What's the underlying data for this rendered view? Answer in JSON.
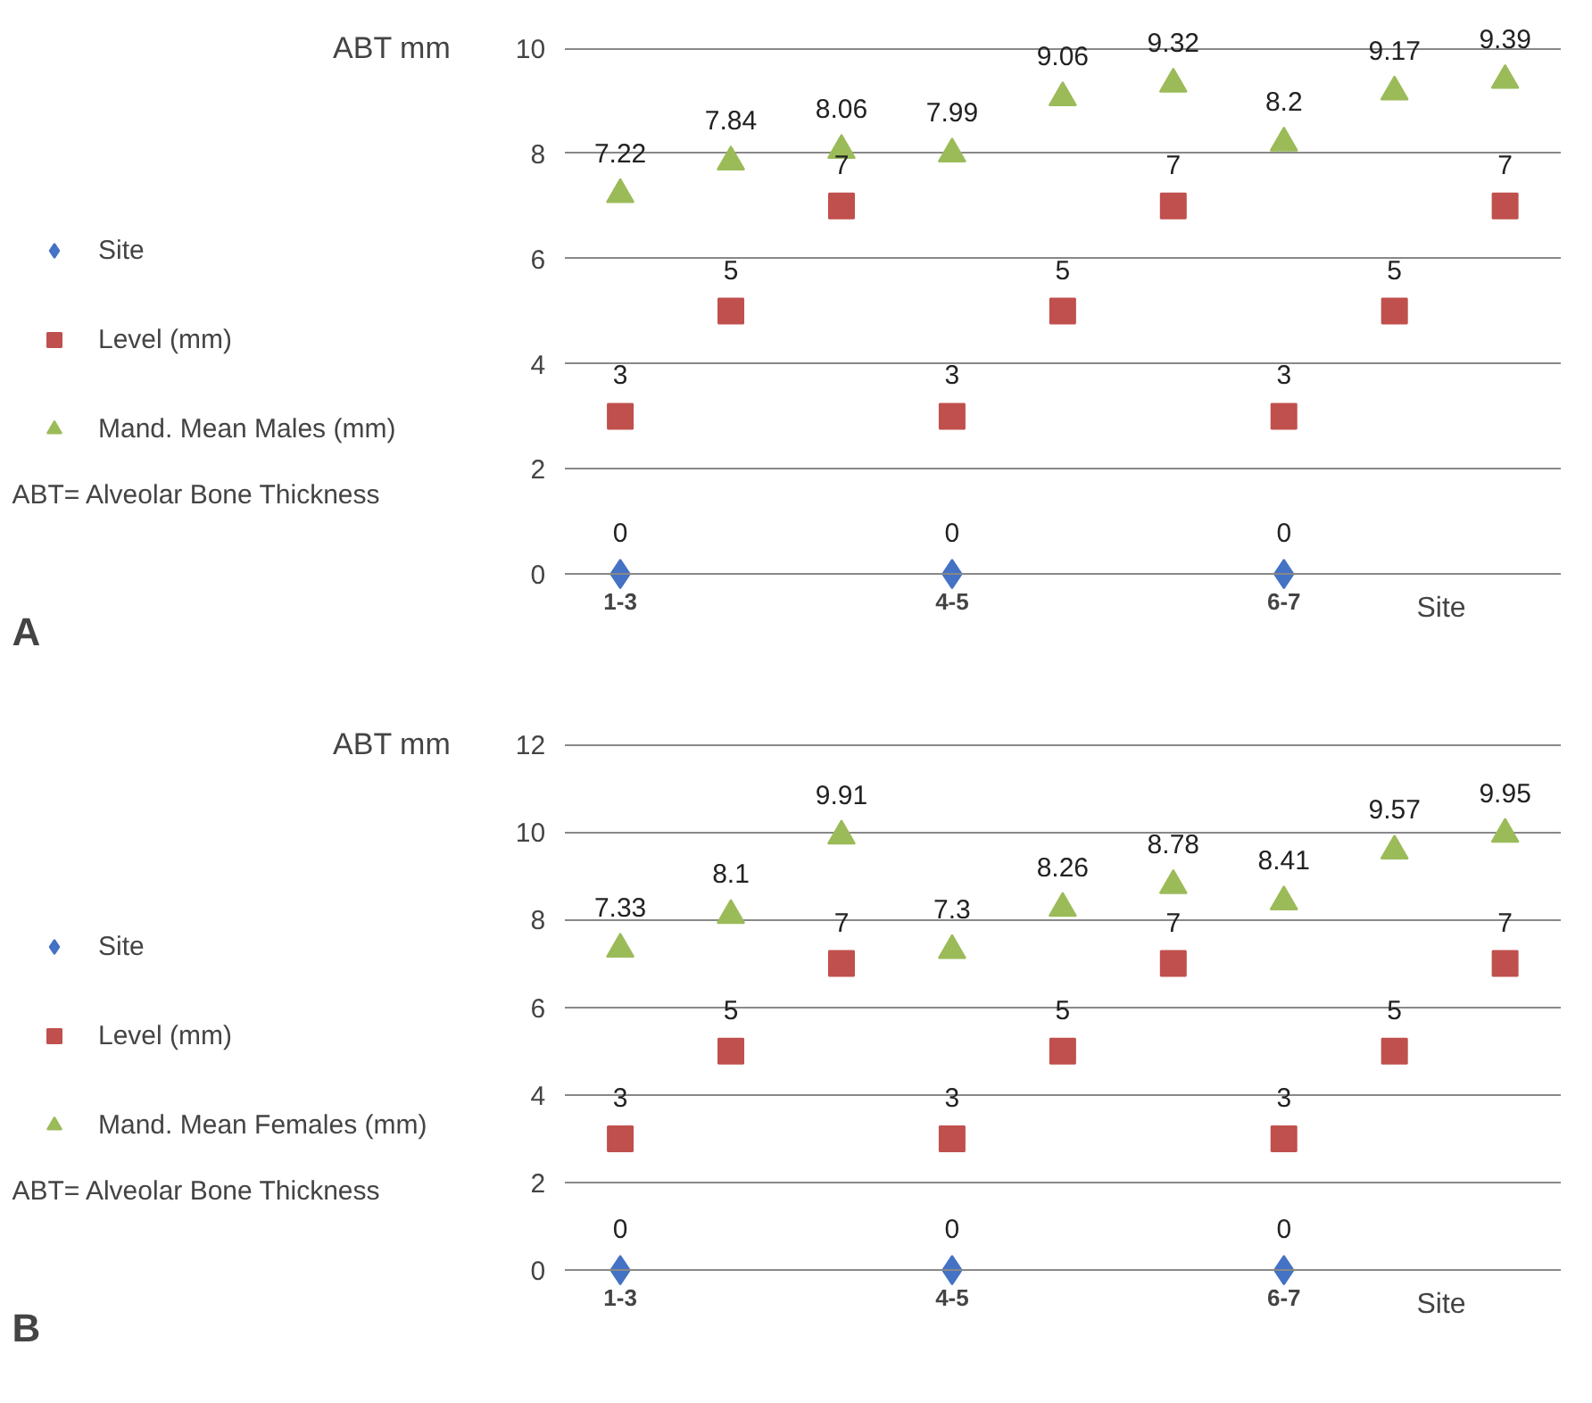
{
  "chart_data": [
    {
      "type": "scatter",
      "categories": [
        "1-3",
        null,
        null,
        "4-5",
        null,
        null,
        "6-7",
        null,
        null
      ],
      "xlabel": "Site",
      "ylabel": "ABT mm",
      "ylim": [
        0,
        10
      ],
      "yticks": [
        0,
        2,
        4,
        6,
        8,
        10
      ],
      "grid": "y",
      "legend": "left",
      "data_labels": true,
      "annotations": [
        "ABT= Alveolar Bone Thickness",
        "A"
      ],
      "series": [
        {
          "name": "Site",
          "color": "#4472c4",
          "marker": "diamond",
          "values": [
            0,
            null,
            null,
            0,
            null,
            null,
            0,
            null,
            null
          ]
        },
        {
          "name": "Level (mm)",
          "color": "#c0504d",
          "marker": "square",
          "values": [
            3,
            5,
            7,
            3,
            5,
            7,
            3,
            5,
            7
          ]
        },
        {
          "name": "Mand. Mean Males (mm)",
          "color": "#9bbb59",
          "marker": "triangle",
          "values": [
            7.22,
            7.84,
            8.06,
            7.99,
            9.06,
            9.32,
            8.2,
            9.17,
            9.39
          ]
        }
      ]
    },
    {
      "type": "scatter",
      "categories": [
        "1-3",
        null,
        null,
        "4-5",
        null,
        null,
        "6-7",
        null,
        null
      ],
      "xlabel": "Site",
      "ylabel": "ABT mm",
      "ylim": [
        0,
        12
      ],
      "yticks": [
        0,
        2,
        4,
        6,
        8,
        10,
        12
      ],
      "grid": "y",
      "legend": "left",
      "data_labels": true,
      "annotations": [
        "ABT= Alveolar Bone Thickness",
        "B"
      ],
      "series": [
        {
          "name": "Site",
          "color": "#4472c4",
          "marker": "diamond",
          "values": [
            0,
            null,
            null,
            0,
            null,
            null,
            0,
            null,
            null
          ]
        },
        {
          "name": "Level (mm)",
          "color": "#c0504d",
          "marker": "square",
          "values": [
            3,
            5,
            7,
            3,
            5,
            7,
            3,
            5,
            7
          ]
        },
        {
          "name": "Mand. Mean Females (mm)",
          "color": "#9bbb59",
          "marker": "triangle",
          "values": [
            7.33,
            8.1,
            9.91,
            7.3,
            8.26,
            8.78,
            8.41,
            9.57,
            9.95
          ]
        }
      ]
    }
  ]
}
